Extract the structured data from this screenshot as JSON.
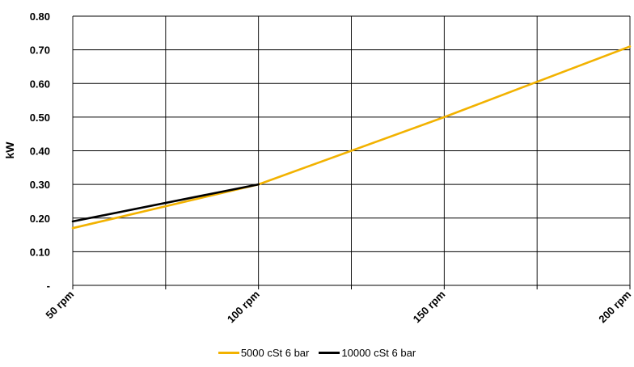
{
  "chart_data": {
    "type": "line",
    "title": "",
    "xlabel": "",
    "ylabel": "kW",
    "categories": [
      "50 rpm",
      "100 rpm",
      "150 rpm",
      "200 rpm"
    ],
    "x": [
      50,
      100,
      150,
      200
    ],
    "y_ticks": [
      {
        "value": 0,
        "label": "-"
      },
      {
        "value": 0.1,
        "label": "0.10"
      },
      {
        "value": 0.2,
        "label": "0.20"
      },
      {
        "value": 0.3,
        "label": "0.30"
      },
      {
        "value": 0.4,
        "label": "0.40"
      },
      {
        "value": 0.5,
        "label": "0.50"
      },
      {
        "value": 0.6,
        "label": "0.60"
      },
      {
        "value": 0.7,
        "label": "0.70"
      },
      {
        "value": 0.8,
        "label": "0.80"
      }
    ],
    "ylim": [
      0,
      0.8
    ],
    "xlim": [
      50,
      200
    ],
    "x_minor_gridlines": [
      75,
      125,
      175
    ],
    "grid": true,
    "legend_position": "bottom",
    "series": [
      {
        "name": "5000 cSt 6 bar",
        "color": "#F2B200",
        "points": [
          [
            50,
            0.17
          ],
          [
            100,
            0.3
          ],
          [
            150,
            0.5
          ],
          [
            200,
            0.71
          ]
        ]
      },
      {
        "name": "10000 cSt 6 bar",
        "color": "#000000",
        "points": [
          [
            50,
            0.19
          ],
          [
            100,
            0.3
          ]
        ]
      }
    ]
  }
}
